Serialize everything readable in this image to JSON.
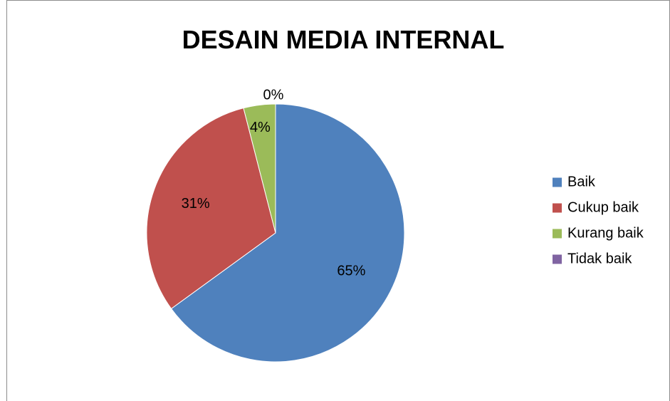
{
  "chart_data": {
    "type": "pie",
    "title": "DESAIN MEDIA INTERNAL",
    "categories": [
      "Baik",
      "Cukup baik",
      "Kurang baik",
      "Tidak baik"
    ],
    "values": [
      65,
      31,
      4,
      0
    ],
    "labels": [
      "65%",
      "31%",
      "4%",
      "0%"
    ],
    "colors": [
      "#4F81BD",
      "#C0504D",
      "#9BBB59",
      "#8064A2"
    ],
    "legend": "right"
  }
}
